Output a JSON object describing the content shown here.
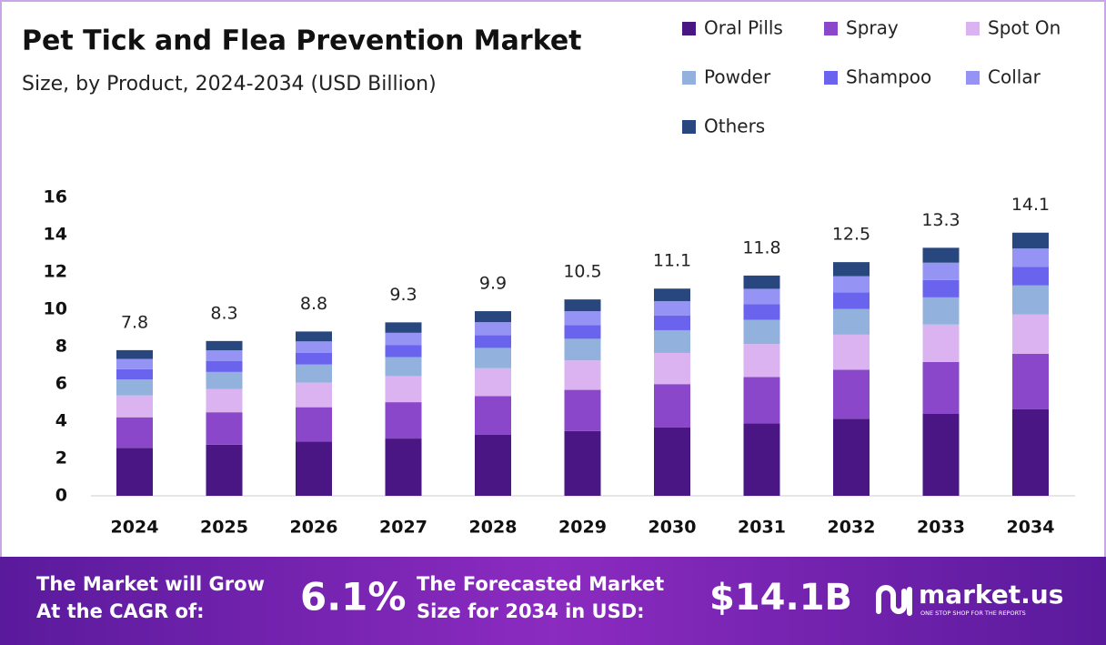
{
  "chart_data": {
    "type": "stacked_bar",
    "title": "Pet Tick and Flea Prevention Market",
    "subtitle": "Size, by Product, 2024-2034 (USD Billion)",
    "categories": [
      "2024",
      "2025",
      "2026",
      "2027",
      "2028",
      "2029",
      "2030",
      "2031",
      "2032",
      "2033",
      "2034"
    ],
    "series": [
      {
        "name": "Oral Pills",
        "color": "#4a1684",
        "values": [
          2.57,
          2.74,
          2.9,
          3.07,
          3.27,
          3.47,
          3.66,
          3.89,
          4.13,
          4.39,
          4.65
        ]
      },
      {
        "name": "Spray",
        "color": "#8a47c9",
        "values": [
          1.64,
          1.74,
          1.85,
          1.95,
          2.08,
          2.21,
          2.33,
          2.48,
          2.63,
          2.79,
          2.96
        ]
      },
      {
        "name": "Spot On",
        "color": "#dbb3f0",
        "values": [
          1.17,
          1.25,
          1.32,
          1.4,
          1.49,
          1.58,
          1.67,
          1.77,
          1.88,
          2.0,
          2.12
        ]
      },
      {
        "name": "Powder",
        "color": "#92b2dd",
        "values": [
          0.86,
          0.91,
          0.97,
          1.02,
          1.09,
          1.16,
          1.22,
          1.3,
          1.38,
          1.46,
          1.55
        ]
      },
      {
        "name": "Shampoo",
        "color": "#6a63ee",
        "values": [
          0.55,
          0.58,
          0.62,
          0.65,
          0.69,
          0.74,
          0.78,
          0.83,
          0.88,
          0.93,
          0.99
        ]
      },
      {
        "name": "Collar",
        "color": "#9593f4",
        "values": [
          0.55,
          0.58,
          0.62,
          0.65,
          0.69,
          0.74,
          0.78,
          0.83,
          0.88,
          0.93,
          0.99
        ]
      },
      {
        "name": "Others",
        "color": "#29477f",
        "values": [
          0.47,
          0.5,
          0.53,
          0.56,
          0.59,
          0.63,
          0.67,
          0.71,
          0.75,
          0.8,
          0.85
        ]
      }
    ],
    "totals": [
      7.8,
      8.3,
      8.8,
      9.3,
      9.9,
      10.5,
      11.1,
      11.8,
      12.5,
      13.3,
      14.1
    ],
    "ylim": [
      0,
      16
    ],
    "yticks": [
      0,
      2,
      4,
      6,
      8,
      10,
      12,
      14,
      16
    ],
    "grid": false
  },
  "footer": {
    "cagr_text_1": "The Market will Grow",
    "cagr_text_2": "At the CAGR of:",
    "cagr": "6.1%",
    "forecast_text_1": "The Forecasted Market",
    "forecast_text_2": "Size for 2034 in USD:",
    "forecast": "$14.1B",
    "brand": "market.us",
    "tagline": "ONE STOP SHOP FOR THE REPORTS"
  }
}
